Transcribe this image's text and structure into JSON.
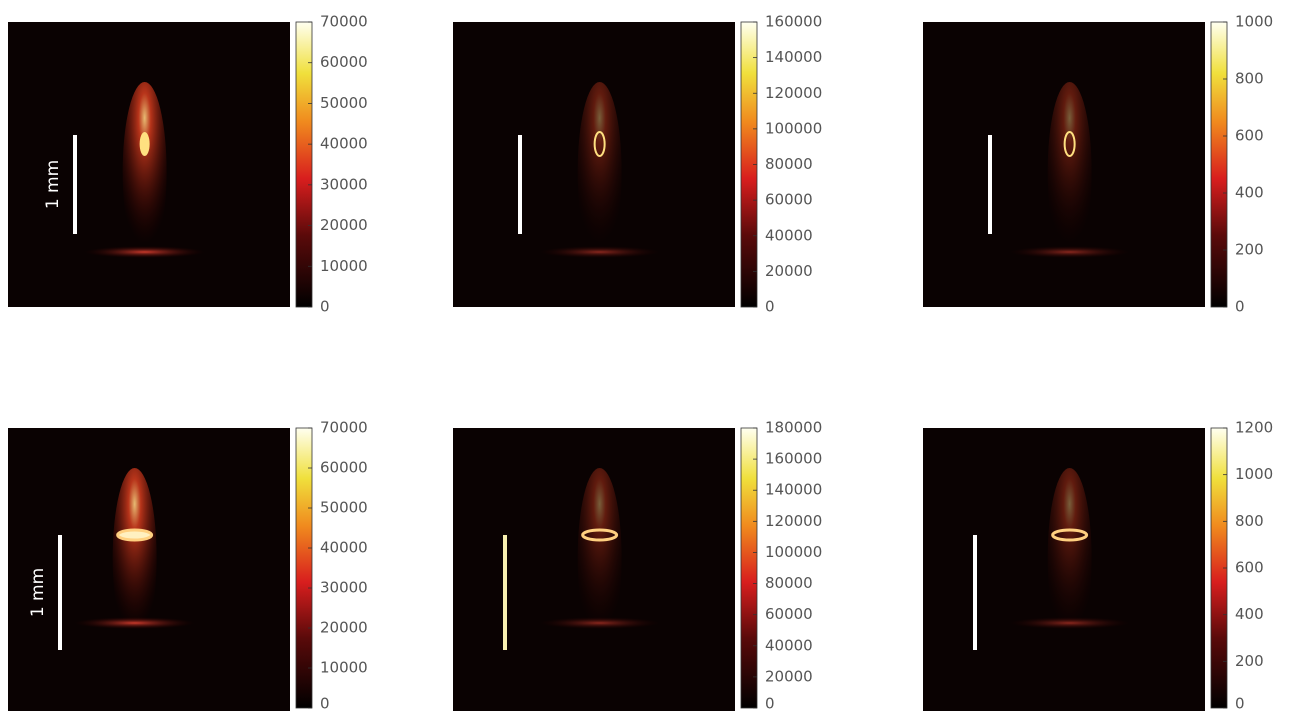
{
  "panels": [
    {
      "scale_label": "1 mm",
      "colorbar": {
        "lim": [
          0,
          70000
        ],
        "ticks": [
          0,
          10000,
          20000,
          30000,
          40000,
          50000,
          60000,
          70000
        ]
      }
    },
    {
      "colorbar": {
        "lim": [
          0,
          160000
        ],
        "ticks": [
          0,
          20000,
          40000,
          60000,
          80000,
          100000,
          120000,
          140000,
          160000
        ]
      }
    },
    {
      "colorbar": {
        "lim": [
          0,
          1000
        ],
        "ticks": [
          0,
          200,
          400,
          600,
          800,
          1000
        ]
      }
    },
    {
      "scale_label": "1 mm",
      "colorbar": {
        "lim": [
          0,
          70000
        ],
        "ticks": [
          0,
          10000,
          20000,
          30000,
          40000,
          50000,
          60000,
          70000
        ]
      }
    },
    {
      "colorbar": {
        "lim": [
          0,
          180000
        ],
        "ticks": [
          0,
          20000,
          40000,
          60000,
          80000,
          100000,
          120000,
          140000,
          160000,
          180000
        ]
      }
    },
    {
      "colorbar": {
        "lim": [
          0,
          1200
        ],
        "ticks": [
          0,
          200,
          400,
          600,
          800,
          1000,
          1200
        ]
      }
    }
  ]
}
